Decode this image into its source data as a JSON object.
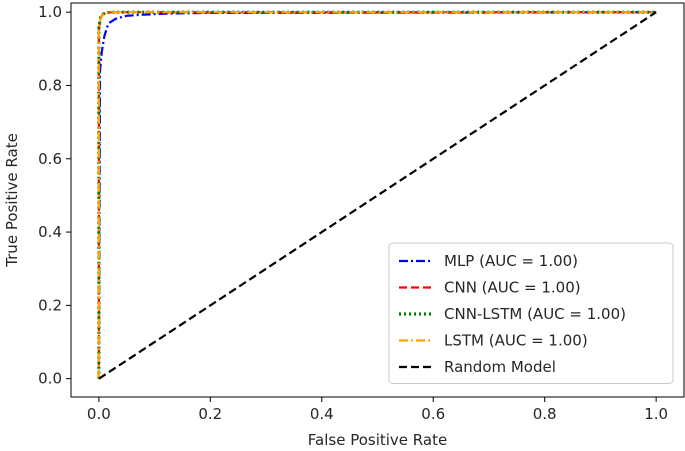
{
  "chart_data": {
    "type": "line",
    "xlabel": "False Positive Rate",
    "ylabel": "True Positive Rate",
    "xlim": [
      -0.05,
      1.05
    ],
    "ylim": [
      -0.05,
      1.025
    ],
    "x_ticks": [
      0.0,
      0.2,
      0.4,
      0.6,
      0.8,
      1.0
    ],
    "y_ticks": [
      0.0,
      0.2,
      0.4,
      0.6,
      0.8,
      1.0
    ],
    "x_tick_labels": [
      "0.0",
      "0.2",
      "0.4",
      "0.6",
      "0.8",
      "1.0"
    ],
    "y_tick_labels": [
      "0.0",
      "0.2",
      "0.4",
      "0.6",
      "0.8",
      "1.0"
    ],
    "grid": false,
    "legend_position": "lower-right",
    "series": [
      {
        "name": "MLP (AUC = 1.00)",
        "color": "#0000ff",
        "style": "dashdot",
        "x": [
          0,
          0.002,
          0.005,
          0.01,
          0.015,
          0.02,
          0.03,
          0.05,
          0.08,
          0.12,
          0.2,
          1.0
        ],
        "y": [
          0,
          0.84,
          0.89,
          0.935,
          0.96,
          0.972,
          0.982,
          0.99,
          0.993,
          0.996,
          0.998,
          1.0
        ]
      },
      {
        "name": "CNN (AUC = 1.00)",
        "color": "#ff0000",
        "style": "dashed",
        "x": [
          0,
          0.0,
          0.003,
          0.008,
          0.015,
          0.03,
          1.0
        ],
        "y": [
          0,
          0.95,
          0.985,
          0.995,
          0.999,
          1.0,
          1.0
        ]
      },
      {
        "name": "CNN-LSTM (AUC = 1.00)",
        "color": "#008000",
        "style": "dotted",
        "x": [
          0,
          0.0,
          0.003,
          0.008,
          0.015,
          0.03,
          1.0
        ],
        "y": [
          0,
          0.96,
          0.985,
          0.995,
          0.999,
          1.0,
          1.0
        ]
      },
      {
        "name": "LSTM (AUC = 1.00)",
        "color": "#ffa500",
        "style": "dashdot",
        "x": [
          0,
          0.0,
          0.003,
          0.008,
          0.015,
          0.03,
          1.0
        ],
        "y": [
          0,
          0.955,
          0.983,
          0.994,
          0.999,
          1.0,
          1.0
        ]
      },
      {
        "name": "Random Model",
        "color": "#000000",
        "style": "dashed",
        "x": [
          0,
          1
        ],
        "y": [
          0,
          1
        ]
      }
    ]
  }
}
